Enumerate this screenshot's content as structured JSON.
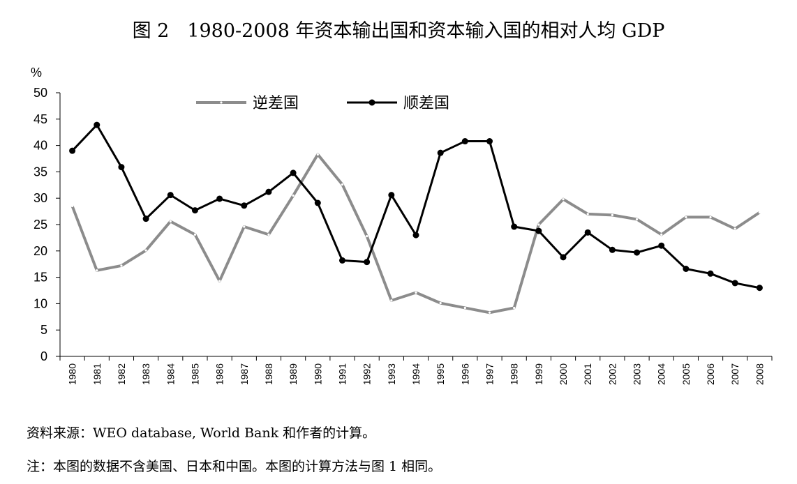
{
  "figure": {
    "label": "图 2",
    "title": "1980-2008 年资本输出国和资本输入国的相对人均 GDP"
  },
  "notes": {
    "source": "资料来源：WEO database, World Bank 和作者的计算。",
    "note": "注：本图的数据不含美国、日本和中国。本图的计算方法与图 1 相同。"
  },
  "chart_data": {
    "type": "line",
    "ylabel": "%",
    "ylim": [
      0,
      50
    ],
    "yticks": [
      0,
      5,
      10,
      15,
      20,
      25,
      30,
      35,
      40,
      45,
      50
    ],
    "grid": false,
    "legend_position": "top-center",
    "x": [
      "1980",
      "1981",
      "1982",
      "1983",
      "1984",
      "1985",
      "1986",
      "1987",
      "1988",
      "1989",
      "1990",
      "1991",
      "1992",
      "1993",
      "1994",
      "1995",
      "1996",
      "1997",
      "1998",
      "1999",
      "2000",
      "2001",
      "2002",
      "2003",
      "2004",
      "2005",
      "2006",
      "2007",
      "2008"
    ],
    "series": [
      {
        "name": "逆差国",
        "color": "#8c8c8c",
        "values": [
          28.5,
          16.3,
          17.2,
          20.1,
          25.6,
          23.1,
          14.3,
          24.6,
          23.1,
          30.5,
          38.3,
          32.6,
          22.8,
          10.6,
          12.1,
          10.1,
          9.2,
          8.3,
          9.2,
          25.0,
          29.8,
          27.0,
          26.8,
          26.0,
          23.1,
          26.4,
          26.4,
          24.2,
          27.3
        ]
      },
      {
        "name": "顺差国",
        "color": "#000000",
        "values": [
          39.0,
          43.9,
          35.9,
          26.1,
          30.6,
          27.7,
          29.9,
          28.6,
          31.2,
          34.8,
          29.1,
          18.2,
          17.9,
          30.6,
          23.0,
          38.6,
          40.8,
          40.8,
          24.6,
          23.8,
          18.8,
          23.5,
          20.2,
          19.7,
          21.0,
          16.6,
          15.7,
          13.9,
          13.0
        ]
      }
    ]
  }
}
